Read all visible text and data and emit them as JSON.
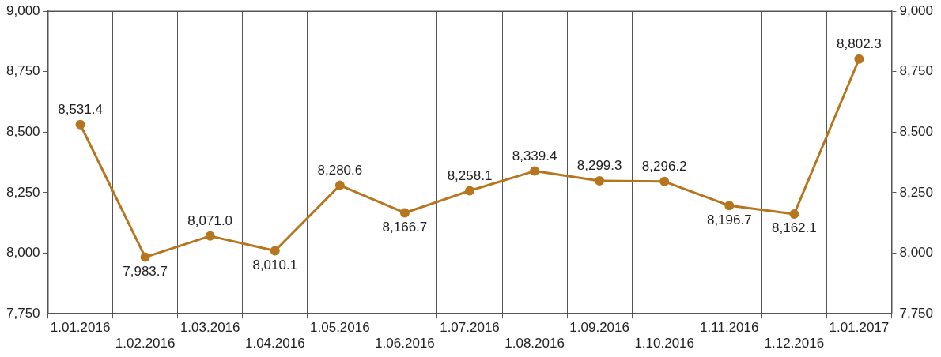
{
  "chart_data": {
    "type": "line",
    "categories": [
      "1.01.2016",
      "1.02.2016",
      "1.03.2016",
      "1.04.2016",
      "1.05.2016",
      "1.06.2016",
      "1.07.2016",
      "1.08.2016",
      "1.09.2016",
      "1.10.2016",
      "1.11.2016",
      "1.12.2016",
      "1.01.2017"
    ],
    "series": [
      {
        "color": "#b5761f",
        "values": [
          8531.4,
          7983.7,
          8071.0,
          8010.1,
          8280.6,
          8166.7,
          8258.1,
          8339.4,
          8299.3,
          8296.2,
          8196.7,
          8162.1,
          8802.3
        ]
      }
    ],
    "ylim": [
      7750,
      9000
    ],
    "yticks": [
      {
        "value": 7750,
        "label": "7,750"
      },
      {
        "value": 8000,
        "label": "8,000"
      },
      {
        "value": 8250,
        "label": "8,250"
      },
      {
        "value": 8500,
        "label": "8,500"
      },
      {
        "value": 8750,
        "label": "8,750"
      },
      {
        "value": 9000,
        "label": "9,000"
      }
    ],
    "y2lim": [
      7750,
      9000
    ],
    "y2ticks": [
      {
        "value": 7750,
        "label": "7,750"
      },
      {
        "value": 8000,
        "label": "8,000"
      },
      {
        "value": 8250,
        "label": "8,250"
      },
      {
        "value": 8500,
        "label": "8,500"
      },
      {
        "value": 8750,
        "label": "8,750"
      },
      {
        "value": 9000,
        "label": "9,000"
      }
    ],
    "value_labels": [
      [
        "8,531.4",
        "7,983.7",
        "8,071.0",
        "8,010.1",
        "8,280.6",
        "8,166.7",
        "8,258.1",
        "8,339.4",
        "8,299.3",
        "8,296.2",
        "8,196.7",
        "8,162.1",
        "8,802.3"
      ]
    ],
    "grid": "x",
    "legend": false,
    "marker": "circle",
    "line_style": "solid"
  }
}
